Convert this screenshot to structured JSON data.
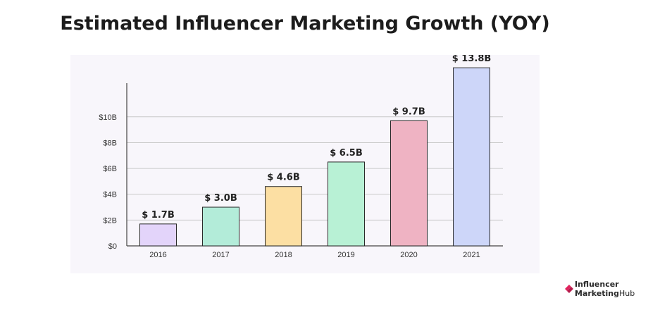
{
  "chart_data": {
    "type": "bar",
    "title": "Estimated Influencer Marketing Growth (YOY)",
    "xlabel": "",
    "ylabel": "",
    "categories": [
      "2016",
      "2017",
      "2018",
      "2019",
      "2020",
      "2021"
    ],
    "values": [
      1.7,
      3.0,
      4.6,
      6.5,
      9.7,
      13.8
    ],
    "data_labels": [
      "$ 1.7B",
      "$ 3.0B",
      "$ 4.6B",
      "$ 6.5B",
      "$ 9.7B",
      "$ 13.8B"
    ],
    "bar_colors": [
      "#e3d4fa",
      "#b3ecd9",
      "#fcdfa3",
      "#b8f1d5",
      "#efb3c3",
      "#cdd6f9"
    ],
    "bar_stroke": "#2a2a2a",
    "y_ticks": [
      0,
      2,
      4,
      6,
      8,
      10
    ],
    "y_tick_labels": [
      "$0",
      "$2B",
      "$4B",
      "$6B",
      "$8B",
      "$10B"
    ],
    "ylim": [
      0,
      12.5
    ],
    "grid": true,
    "gridline_color": "#c9c9c9",
    "legend": "none"
  },
  "branding": {
    "line1": "Influencer",
    "line2_bold": "Marketing",
    "line2_thin": "Hub",
    "mark_color": "#e0245e"
  }
}
